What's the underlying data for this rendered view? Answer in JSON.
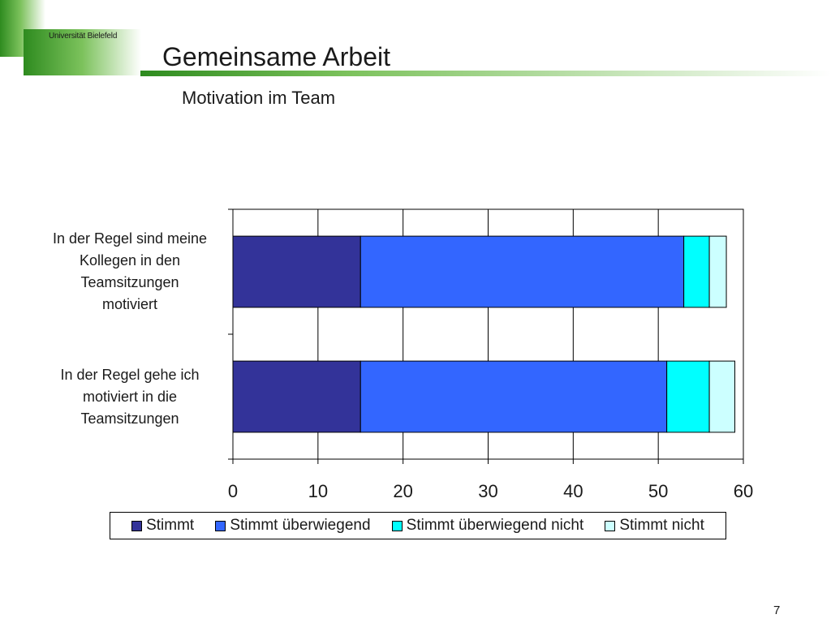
{
  "header": {
    "university": "Universität Bielefeld",
    "title": "Gemeinsame Arbeit",
    "colors": {
      "brand_dark": "#2e8b1f",
      "brand_light": "#7cc25c"
    }
  },
  "slide_number": "7",
  "chart_data": {
    "type": "bar",
    "orientation": "horizontal",
    "stacked": true,
    "title": "Motivation im Team",
    "xlabel": "",
    "ylabel": "",
    "xlim": [
      0,
      60
    ],
    "x_ticks": [
      "0",
      "10",
      "20",
      "30",
      "40",
      "50",
      "60"
    ],
    "grid": true,
    "legend_position": "bottom",
    "categories": [
      "In der Regel sind meine Kollegen in den Teamsitzungen motiviert",
      "In der Regel gehe ich motiviert in die Teamsitzungen"
    ],
    "category_lines": [
      [
        "In der Regel sind meine",
        "Kollegen in den",
        "Teamsitzungen",
        "motiviert"
      ],
      [
        "In der Regel gehe ich",
        "motiviert in die",
        "Teamsitzungen"
      ]
    ],
    "series": [
      {
        "name": "Stimmt",
        "color": "#333399",
        "values": [
          15,
          15
        ]
      },
      {
        "name": "Stimmt überwiegend",
        "color": "#3366ff",
        "values": [
          38,
          36
        ]
      },
      {
        "name": "Stimmt überwiegend nicht",
        "color": "#00ffff",
        "values": [
          3,
          5
        ]
      },
      {
        "name": "Stimmt nicht",
        "color": "#ccffff",
        "values": [
          2,
          3
        ]
      }
    ]
  }
}
